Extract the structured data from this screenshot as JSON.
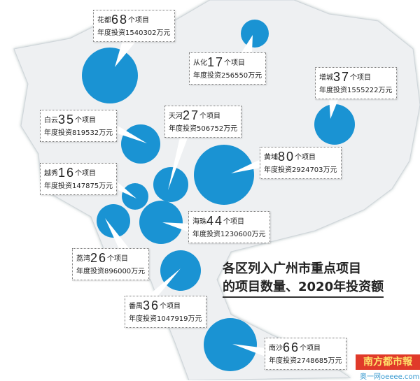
{
  "title": {
    "line1": "各区列入广州市重点项目",
    "line2": "的项目数量、2020年投资额"
  },
  "unit_count": "个项目",
  "invest_prefix": "年度投资",
  "invest_unit": "万元",
  "colors": {
    "bubble": "#1a93d3",
    "land": "#eef0f2",
    "logo": "#e03a2a"
  },
  "districts": [
    {
      "name": "花都",
      "count": "68",
      "invest": "1540302"
    },
    {
      "name": "从化",
      "count": "17",
      "invest": "256550"
    },
    {
      "name": "增城",
      "count": "37",
      "invest": "1555222"
    },
    {
      "name": "白云",
      "count": "35",
      "invest": "819532"
    },
    {
      "name": "天河",
      "count": "27",
      "invest": "506752"
    },
    {
      "name": "黄埔",
      "count": "80",
      "invest": "2924703"
    },
    {
      "name": "越秀",
      "count": "16",
      "invest": "147875"
    },
    {
      "name": "海珠",
      "count": "44",
      "invest": "1230600"
    },
    {
      "name": "荔湾",
      "count": "26",
      "invest": "896000"
    },
    {
      "name": "番禺",
      "count": "36",
      "invest": "1047919"
    },
    {
      "name": "南沙",
      "count": "66",
      "invest": "2748685"
    }
  ],
  "logo": {
    "text": "南方都市報",
    "sub": "奥一网oeeee.com"
  }
}
